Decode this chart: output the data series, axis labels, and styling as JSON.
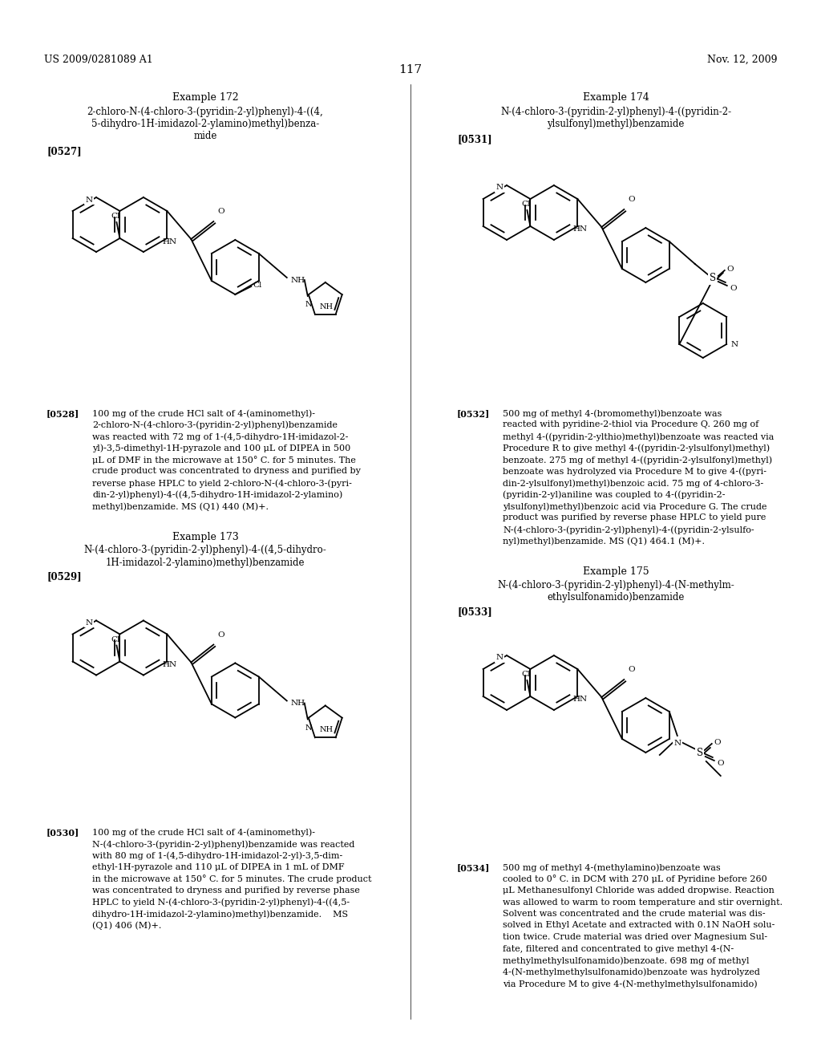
{
  "page_header_left": "US 2009/0281089 A1",
  "page_header_right": "Nov. 12, 2009",
  "page_number": "117",
  "background_color": "#ffffff",
  "text_color": "#000000",
  "ex172_title": "Example 172",
  "ex172_name1": "2-chloro-N-(4-chloro-3-(pyridin-2-yl)phenyl)-4-((4,",
  "ex172_name2": "5-dihydro-1H-imidazol-2-ylamino)methyl)benza-",
  "ex172_name3": "mide",
  "ex172_ref": "[0527]",
  "ex172_body_ref": "[0528]",
  "ex172_body": [
    "100 mg of the crude HCl salt of 4-(aminomethyl)-",
    "2-chloro-N-(4-chloro-3-(pyridin-2-yl)phenyl)benzamide",
    "was reacted with 72 mg of 1-(4,5-dihydro-1H-imidazol-2-",
    "yl)-3,5-dimethyl-1H-pyrazole and 100 μL of DIPEA in 500",
    "μL of DMF in the microwave at 150° C. for 5 minutes. The",
    "crude product was concentrated to dryness and purified by",
    "reverse phase HPLC to yield 2-chloro-N-(4-chloro-3-(pyri-",
    "din-2-yl)phenyl)-4-((4,5-dihydro-1H-imidazol-2-ylamino)",
    "methyl)benzamide. MS (Q1) 440 (M)+."
  ],
  "ex173_title": "Example 173",
  "ex173_name1": "N-(4-chloro-3-(pyridin-2-yl)phenyl)-4-((4,5-dihydro-",
  "ex173_name2": "1H-imidazol-2-ylamino)methyl)benzamide",
  "ex173_ref": "[0529]",
  "ex173_body_ref": "[0530]",
  "ex173_body": [
    "100 mg of the crude HCl salt of 4-(aminomethyl)-",
    "N-(4-chloro-3-(pyridin-2-yl)phenyl)benzamide was reacted",
    "with 80 mg of 1-(4,5-dihydro-1H-imidazol-2-yl)-3,5-dim-",
    "ethyl-1H-pyrazole and 110 μL of DIPEA in 1 mL of DMF",
    "in the microwave at 150° C. for 5 minutes. The crude product",
    "was concentrated to dryness and purified by reverse phase",
    "HPLC to yield N-(4-chloro-3-(pyridin-2-yl)phenyl)-4-((4,5-",
    "dihydro-1H-imidazol-2-ylamino)methyl)benzamide.    MS",
    "(Q1) 406 (M)+."
  ],
  "ex174_title": "Example 174",
  "ex174_name1": "N-(4-chloro-3-(pyridin-2-yl)phenyl)-4-((pyridin-2-",
  "ex174_name2": "ylsulfonyl)methyl)benzamide",
  "ex174_ref": "[0531]",
  "ex174_body_ref": "[0532]",
  "ex174_body": [
    "500 mg of methyl 4-(bromomethyl)benzoate was",
    "reacted with pyridine-2-thiol via Procedure Q. 260 mg of",
    "methyl 4-((pyridin-2-ylthio)methyl)benzoate was reacted via",
    "Procedure R to give methyl 4-((pyridin-2-ylsulfonyl)methyl)",
    "benzoate. 275 mg of methyl 4-((pyridin-2-ylsulfonyl)methyl)",
    "benzoate was hydrolyzed via Procedure M to give 4-((pyri-",
    "din-2-ylsulfonyl)methyl)benzoic acid. 75 mg of 4-chloro-3-",
    "(pyridin-2-yl)aniline was coupled to 4-((pyridin-2-",
    "ylsulfonyl)methyl)benzoic acid via Procedure G. The crude",
    "product was purified by reverse phase HPLC to yield pure",
    "N-(4-chloro-3-(pyridin-2-yl)phenyl)-4-((pyridin-2-ylsulfo-",
    "nyl)methyl)benzamide. MS (Q1) 464.1 (M)+."
  ],
  "ex175_title": "Example 175",
  "ex175_name1": "N-(4-chloro-3-(pyridin-2-yl)phenyl)-4-(N-methylm-",
  "ex175_name2": "ethylsulfonamido)benzamide",
  "ex175_ref": "[0533]",
  "ex175_body_ref": "[0534]",
  "ex175_body": [
    "500 mg of methyl 4-(methylamino)benzoate was",
    "cooled to 0° C. in DCM with 270 μL of Pyridine before 260",
    "μL Methanesulfonyl Chloride was added dropwise. Reaction",
    "was allowed to warm to room temperature and stir overnight.",
    "Solvent was concentrated and the crude material was dis-",
    "solved in Ethyl Acetate and extracted with 0.1N NaOH solu-",
    "tion twice. Crude material was dried over Magnesium Sul-",
    "fate, filtered and concentrated to give methyl 4-(N-",
    "methylmethylsulfonamido)benzoate. 698 mg of methyl",
    "4-(N-methylmethylsulfonamido)benzoate was hydrolyzed",
    "via Procedure M to give 4-(N-methylmethylsulfonamido)"
  ]
}
